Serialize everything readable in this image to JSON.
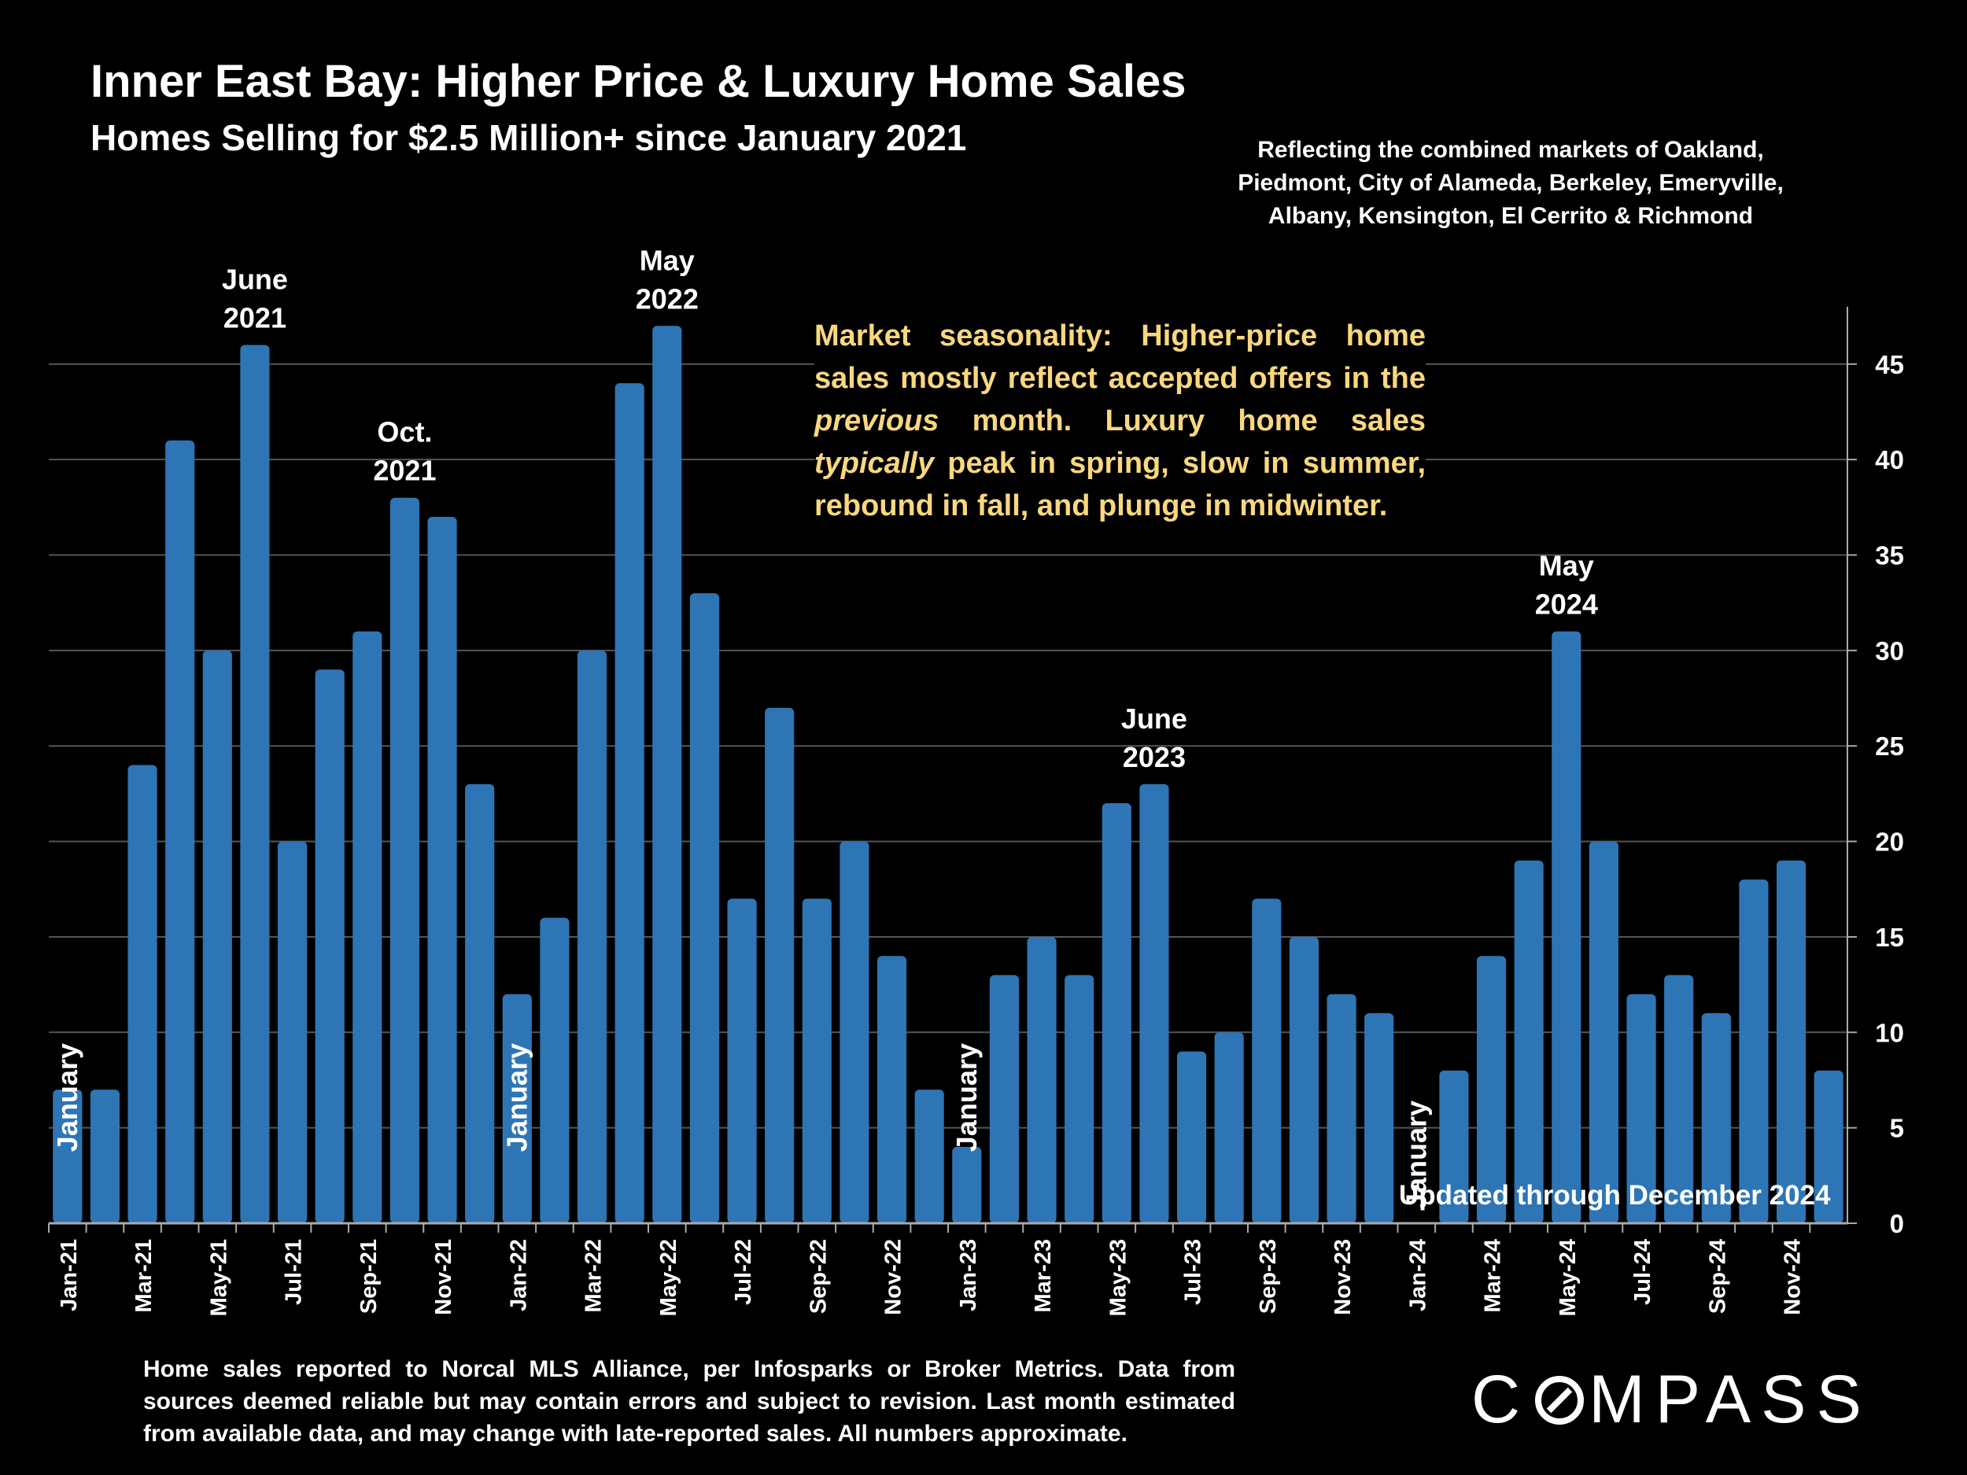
{
  "header": {
    "title": "Inner East Bay: Higher Price & Luxury Home Sales",
    "subtitle": "Homes Selling for $2.5 Million+ since January 2021",
    "region_note_lines": [
      "Reflecting the combined markets of Oakland,",
      "Piedmont, City of Alameda, Berkeley, Emeryville,",
      "Albany, Kensington, El Cerrito & Richmond"
    ]
  },
  "annotation": {
    "part1": "Market seasonality:  Higher-price home sales mostly reflect accepted offers in the ",
    "italic1": "previous",
    "part2": " month. Luxury home sales ",
    "italic2": "typically",
    "part3": " peak in spring, slow in summer, rebound in fall, and plunge in midwinter."
  },
  "updated_note": "Updated through December 2024",
  "footnote": "Home sales reported to Norcal MLS Alliance, per Infosparks or Broker Metrics. Data from sources deemed reliable but may contain errors and subject to revision.  Last month estimated from available data, and may change with late-reported sales. All numbers approximate.",
  "logo": {
    "text_before": "C",
    "text_after": "MPASS",
    "icon": "compass-o-icon"
  },
  "colors": {
    "background": "#000000",
    "bar": "#2e75b6",
    "annotation": "#f9d77e",
    "grid": "#555555"
  },
  "chart_data": {
    "type": "bar",
    "categories": [
      "Jan-21",
      "Feb-21",
      "Mar-21",
      "Apr-21",
      "May-21",
      "Jun-21",
      "Jul-21",
      "Aug-21",
      "Sep-21",
      "Oct-21",
      "Nov-21",
      "Dec-21",
      "Jan-22",
      "Feb-22",
      "Mar-22",
      "Apr-22",
      "May-22",
      "Jun-22",
      "Jul-22",
      "Aug-22",
      "Sep-22",
      "Oct-22",
      "Nov-22",
      "Dec-22",
      "Jan-23",
      "Feb-23",
      "Mar-23",
      "Apr-23",
      "May-23",
      "Jun-23",
      "Jul-23",
      "Aug-23",
      "Sep-23",
      "Oct-23",
      "Nov-23",
      "Dec-23",
      "Jan-24",
      "Feb-24",
      "Mar-24",
      "Apr-24",
      "May-24",
      "Jun-24",
      "Jul-24",
      "Aug-24",
      "Sep-24",
      "Oct-24",
      "Nov-24",
      "Dec-24"
    ],
    "values": [
      7,
      7,
      24,
      41,
      30,
      46,
      20,
      29,
      31,
      38,
      37,
      23,
      12,
      16,
      30,
      44,
      47,
      33,
      17,
      27,
      17,
      20,
      14,
      7,
      4,
      13,
      15,
      13,
      22,
      23,
      9,
      10,
      17,
      15,
      12,
      11,
      0,
      8,
      14,
      19,
      31,
      20,
      12,
      13,
      11,
      18,
      19,
      8
    ],
    "x_tick_labels": [
      "Jan-21",
      "Mar-21",
      "May-21",
      "Jul-21",
      "Sep-21",
      "Nov-21",
      "Jan-22",
      "Mar-22",
      "May-22",
      "Jul-22",
      "Sep-22",
      "Nov-22",
      "Jan-23",
      "Mar-23",
      "May-23",
      "Jul-23",
      "Sep-23",
      "Nov-23",
      "Jan-24",
      "Mar-24",
      "May-24",
      "Jul-24",
      "Sep-24",
      "Nov-24"
    ],
    "y_ticks": [
      0,
      5,
      10,
      15,
      20,
      25,
      30,
      35,
      40,
      45
    ],
    "ylim": [
      0,
      48
    ],
    "y_axis_position": "right",
    "grid": true,
    "peak_labels": [
      {
        "index": 5,
        "lines": [
          "June",
          "2021"
        ]
      },
      {
        "index": 9,
        "lines": [
          "Oct.",
          "2021"
        ]
      },
      {
        "index": 16,
        "lines": [
          "May",
          "2022"
        ]
      },
      {
        "index": 29,
        "lines": [
          "June",
          "2023"
        ]
      },
      {
        "index": 40,
        "lines": [
          "May",
          "2024"
        ]
      }
    ],
    "january_labels": [
      {
        "index": 0,
        "text": "January"
      },
      {
        "index": 12,
        "text": "January"
      },
      {
        "index": 24,
        "text": "January"
      },
      {
        "index": 36,
        "text": "January"
      }
    ]
  }
}
